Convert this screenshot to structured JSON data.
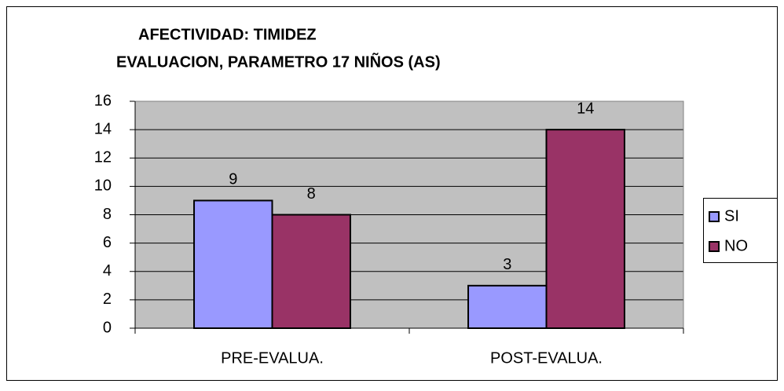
{
  "chart_data": {
    "type": "bar",
    "title": [
      "AFECTIVIDAD: TIMIDEZ",
      "EVALUACION, PARAMETRO 17 NIÑOS (AS)"
    ],
    "categories": [
      "PRE-EVALUA.",
      "POST-EVALUA."
    ],
    "series": [
      {
        "name": "SI",
        "color": "#9999ff",
        "values": [
          9,
          3
        ]
      },
      {
        "name": "NO",
        "color": "#993366",
        "values": [
          8,
          14
        ]
      }
    ],
    "ylim": [
      0,
      16
    ],
    "yticks": [
      0,
      2,
      4,
      6,
      8,
      10,
      12,
      14,
      16
    ],
    "grid": true,
    "legend": "right"
  }
}
